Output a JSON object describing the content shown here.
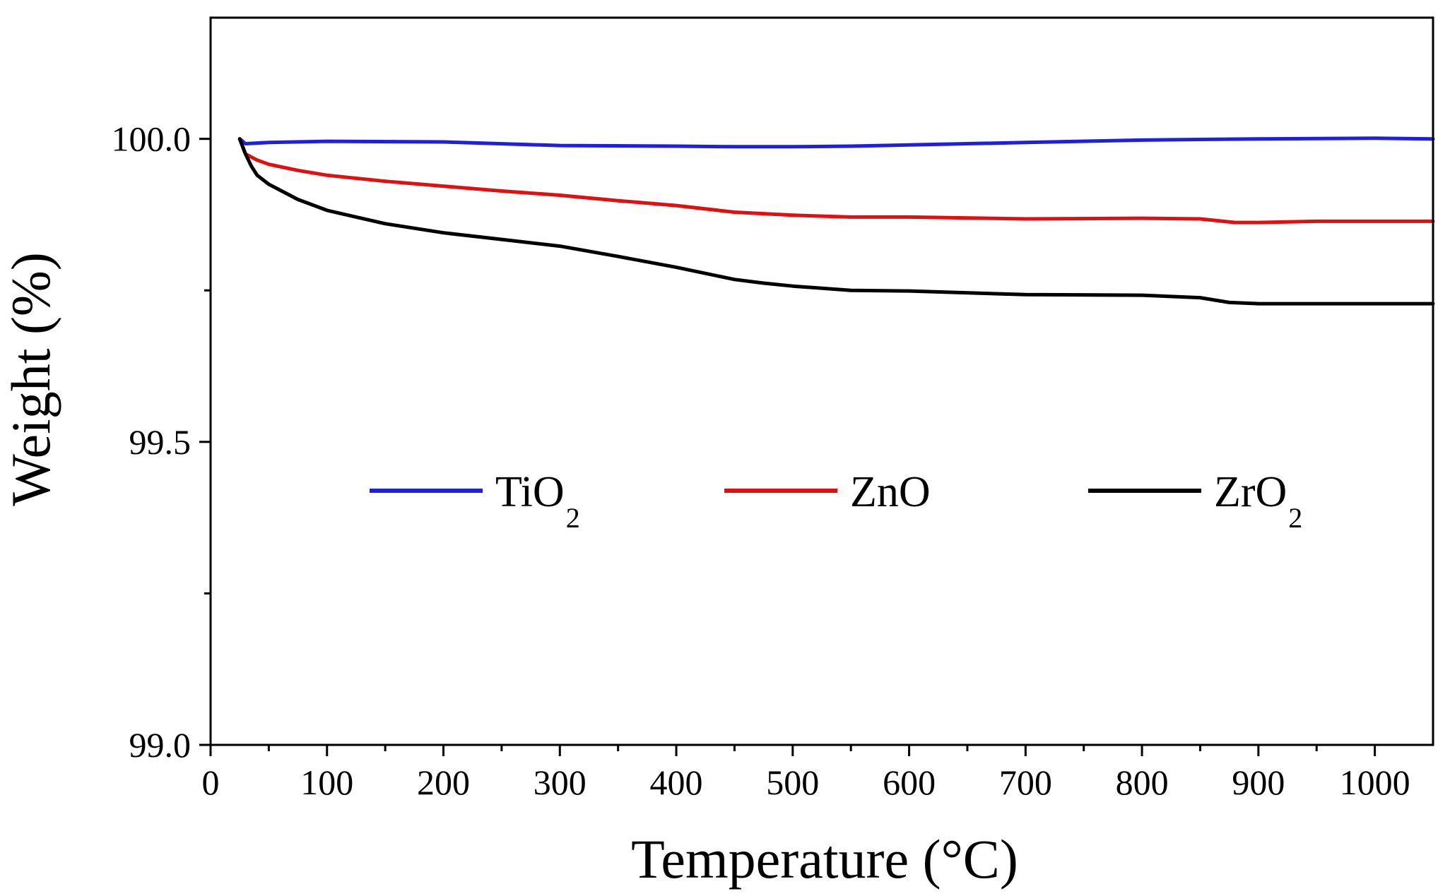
{
  "chart_data": {
    "type": "line",
    "title": "",
    "xlabel": "Temperature (°C)",
    "ylabel": "Weight (%)",
    "xlim": [
      0,
      1050
    ],
    "ylim": [
      99.0,
      100.2
    ],
    "x_ticks": [
      0,
      100,
      200,
      300,
      400,
      500,
      600,
      700,
      800,
      900,
      1000
    ],
    "x_tick_labels": [
      "0",
      "100",
      "200",
      "300",
      "400",
      "500",
      "600",
      "700",
      "800",
      "900",
      "1000"
    ],
    "y_ticks": [
      99.0,
      99.5,
      100.0
    ],
    "y_tick_labels": [
      "99.0",
      "99.5",
      "100.0"
    ],
    "legend_position": "middle",
    "series": [
      {
        "name": "TiO",
        "subscript": "2",
        "color": "#1f1fe0",
        "x": [
          25,
          30,
          50,
          100,
          200,
          300,
          400,
          450,
          500,
          550,
          600,
          700,
          800,
          850,
          900,
          1000,
          1050
        ],
        "y": [
          100.0,
          99.992,
          99.994,
          99.996,
          99.995,
          99.989,
          99.988,
          99.987,
          99.987,
          99.988,
          99.99,
          99.994,
          99.998,
          99.999,
          100.0,
          100.001,
          100.0
        ]
      },
      {
        "name": "ZnO",
        "subscript": "",
        "color": "#e01010",
        "x": [
          25,
          30,
          40,
          50,
          75,
          100,
          150,
          200,
          250,
          300,
          350,
          400,
          450,
          500,
          550,
          600,
          700,
          800,
          850,
          880,
          900,
          950,
          1000,
          1050
        ],
        "y": [
          100.0,
          99.975,
          99.965,
          99.958,
          99.948,
          99.94,
          99.93,
          99.922,
          99.914,
          99.907,
          99.898,
          99.89,
          99.879,
          99.874,
          99.871,
          99.871,
          99.868,
          99.869,
          99.868,
          99.862,
          99.862,
          99.864,
          99.864,
          99.864
        ]
      },
      {
        "name": "ZrO",
        "subscript": "2",
        "color": "#000000",
        "x": [
          25,
          30,
          35,
          40,
          50,
          75,
          100,
          150,
          200,
          250,
          300,
          350,
          400,
          450,
          475,
          500,
          550,
          600,
          700,
          800,
          850,
          875,
          900,
          950,
          1000,
          1050
        ],
        "y": [
          100.0,
          99.975,
          99.955,
          99.94,
          99.925,
          99.9,
          99.882,
          99.86,
          99.845,
          99.834,
          99.823,
          99.806,
          99.788,
          99.768,
          99.762,
          99.757,
          99.75,
          99.749,
          99.743,
          99.742,
          99.738,
          99.73,
          99.728,
          99.728,
          99.728,
          99.728
        ]
      }
    ]
  }
}
